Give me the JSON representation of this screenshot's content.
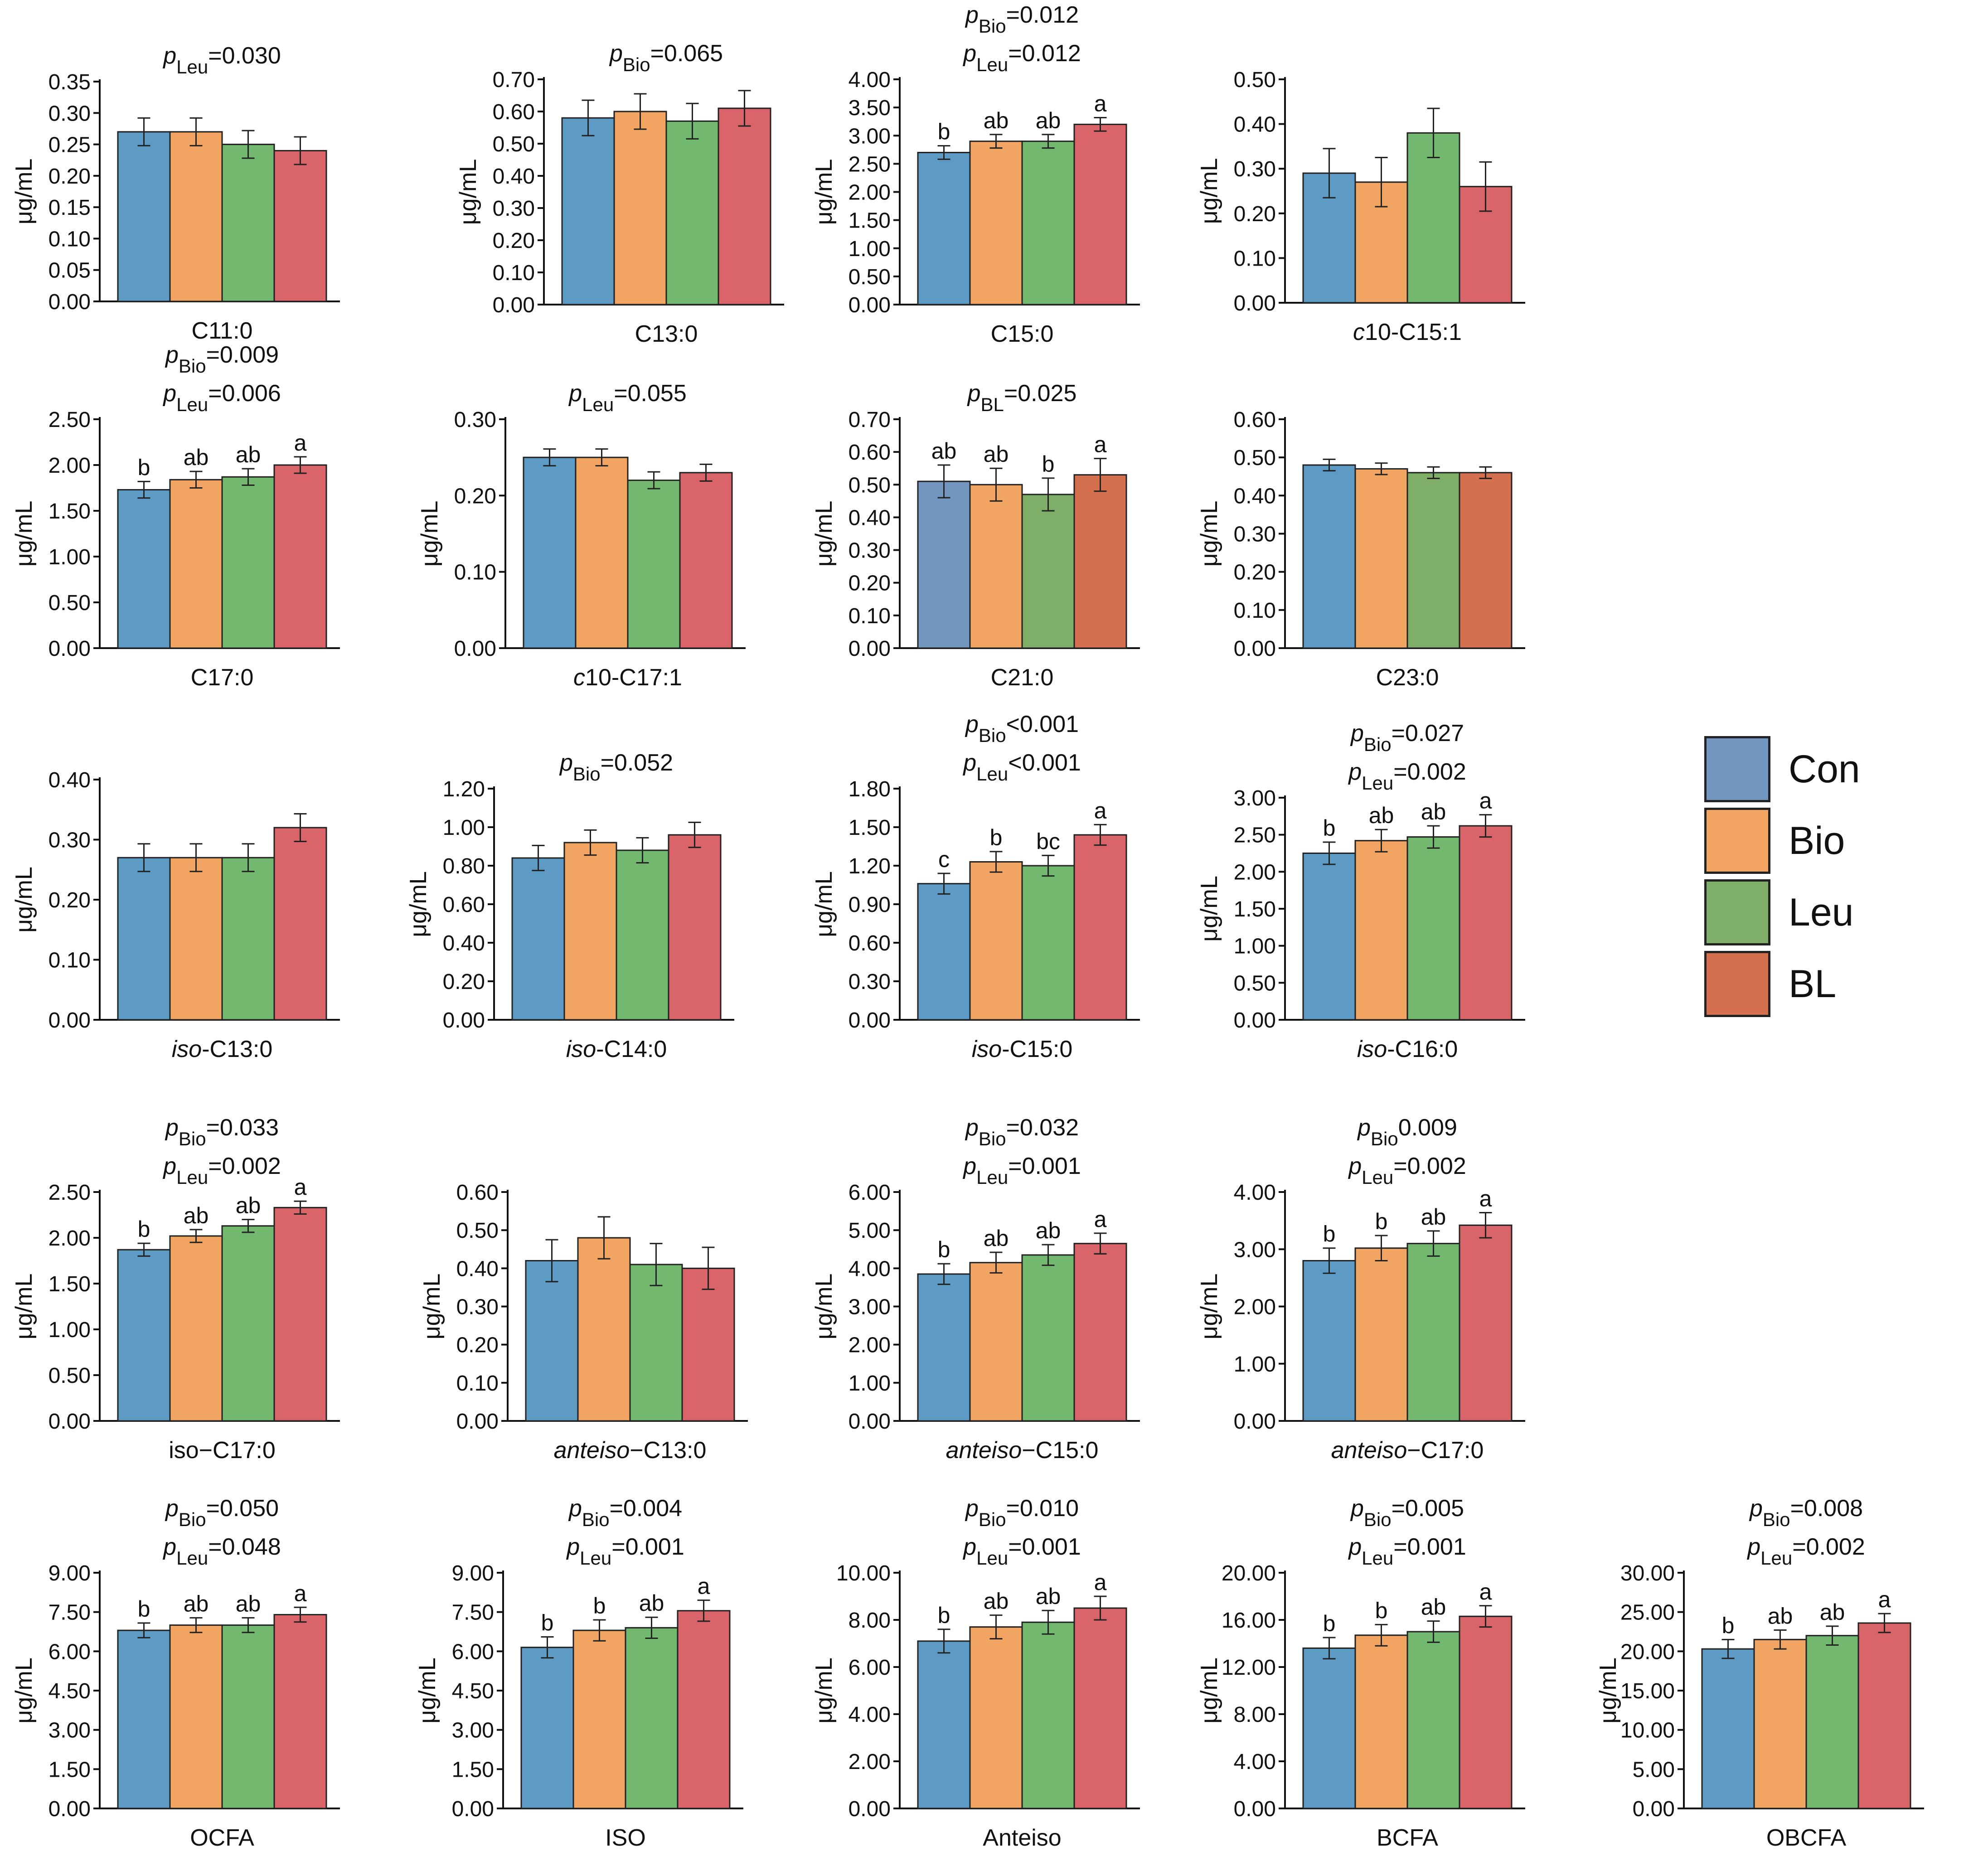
{
  "legend": {
    "items": [
      {
        "label": "Con",
        "color": "#7396c0"
      },
      {
        "label": "Bio",
        "color": "#f2a562"
      },
      {
        "label": "Leu",
        "color": "#7fae68"
      },
      {
        "label": "BL",
        "color": "#d5704f"
      }
    ]
  },
  "chart_data": [
    {
      "type": "bar",
      "xlabel": "C11:0",
      "ylabel": "μg/mL",
      "ylim": [
        0,
        0.35
      ],
      "yticks": [
        "0.00",
        "0.05",
        "0.10",
        "0.15",
        "0.20",
        "0.25",
        "0.30",
        "0.35"
      ],
      "categories": [
        "Con",
        "Bio",
        "Leu",
        "BL"
      ],
      "values": [
        0.27,
        0.27,
        0.25,
        0.24
      ],
      "errors": [
        0.022,
        0.022,
        0.022,
        0.022
      ],
      "letters": [
        "",
        "",
        "",
        ""
      ],
      "annotations": [
        {
          "p": "p",
          "sub": "Leu",
          "text": "=0.030"
        }
      ]
    },
    {
      "type": "bar",
      "xlabel": "C13:0",
      "ylabel": "μg/mL",
      "ylim": [
        0,
        0.7
      ],
      "yticks": [
        "0.00",
        "0.10",
        "0.20",
        "0.30",
        "0.40",
        "0.50",
        "0.60",
        "0.70"
      ],
      "categories": [
        "Con",
        "Bio",
        "Leu",
        "BL"
      ],
      "values": [
        0.58,
        0.6,
        0.57,
        0.61
      ],
      "errors": [
        0.055,
        0.055,
        0.055,
        0.055
      ],
      "letters": [
        "",
        "",
        "",
        ""
      ],
      "annotations": [
        {
          "p": "p",
          "sub": "Bio",
          "text": "=0.065"
        }
      ]
    },
    {
      "type": "bar",
      "xlabel": "C15:0",
      "ylabel": "μg/mL",
      "ylim": [
        0,
        4.0
      ],
      "yticks": [
        "0.00",
        "0.50",
        "1.00",
        "1.50",
        "2.00",
        "2.50",
        "3.00",
        "3.50",
        "4.00"
      ],
      "categories": [
        "Con",
        "Bio",
        "Leu",
        "BL"
      ],
      "values": [
        2.7,
        2.9,
        2.9,
        3.2
      ],
      "errors": [
        0.12,
        0.12,
        0.12,
        0.12
      ],
      "letters": [
        "b",
        "ab",
        "ab",
        "a"
      ],
      "annotations": [
        {
          "p": "p",
          "sub": "Bio",
          "text": "=0.012"
        },
        {
          "p": "p",
          "sub": "Leu",
          "text": "=0.012"
        }
      ]
    },
    {
      "type": "bar",
      "xlabel": "c10-C15:1",
      "xlabel_italic": "c",
      "xlabel_rest": "10-C15:1",
      "ylabel": "μg/mL",
      "ylim": [
        0,
        0.5
      ],
      "yticks": [
        "0.00",
        "0.10",
        "0.20",
        "0.30",
        "0.40",
        "0.50"
      ],
      "categories": [
        "Con",
        "Bio",
        "Leu",
        "BL"
      ],
      "values": [
        0.29,
        0.27,
        0.38,
        0.26
      ],
      "errors": [
        0.055,
        0.055,
        0.055,
        0.055
      ],
      "letters": [
        "",
        "",
        "",
        ""
      ],
      "annotations": []
    },
    {
      "type": "bar",
      "xlabel": "C17:0",
      "ylabel": "μg/mL",
      "ylim": [
        0,
        2.5
      ],
      "yticks": [
        "0.00",
        "0.50",
        "1.00",
        "1.50",
        "2.00",
        "2.50"
      ],
      "categories": [
        "Con",
        "Bio",
        "Leu",
        "BL"
      ],
      "values": [
        1.73,
        1.84,
        1.87,
        2.0
      ],
      "errors": [
        0.09,
        0.09,
        0.09,
        0.09
      ],
      "letters": [
        "b",
        "ab",
        "ab",
        "a"
      ],
      "annotations": [
        {
          "p": "p",
          "sub": "Bio",
          "text": "=0.009"
        },
        {
          "p": "p",
          "sub": "Leu",
          "text": "=0.006"
        }
      ]
    },
    {
      "type": "bar",
      "xlabel": "c10-C17:1",
      "xlabel_italic": "c",
      "xlabel_rest": "10-C17:1",
      "ylabel": "μg/mL",
      "ylim": [
        0,
        0.3
      ],
      "yticks": [
        "0.00",
        "0.10",
        "0.20",
        "0.30"
      ],
      "categories": [
        "Con",
        "Bio",
        "Leu",
        "BL"
      ],
      "values": [
        0.25,
        0.25,
        0.22,
        0.23
      ],
      "errors": [
        0.011,
        0.011,
        0.011,
        0.011
      ],
      "letters": [
        "",
        "",
        "",
        ""
      ],
      "annotations": [
        {
          "p": "p",
          "sub": "Leu",
          "text": "=0.055"
        }
      ]
    },
    {
      "type": "bar",
      "xlabel": "C21:0",
      "ylabel": "μg/mL",
      "ylim": [
        0,
        0.7
      ],
      "yticks": [
        "0.00",
        "0.10",
        "0.20",
        "0.30",
        "0.40",
        "0.50",
        "0.60",
        "0.70"
      ],
      "categories": [
        "Con",
        "Bio",
        "Leu",
        "BL"
      ],
      "values": [
        0.51,
        0.5,
        0.47,
        0.53
      ],
      "errors": [
        0.05,
        0.05,
        0.05,
        0.05
      ],
      "letters": [
        "ab",
        "ab",
        "b",
        "a"
      ],
      "colors": [
        "#7396c0",
        "#f2a562",
        "#7fae68",
        "#d5704f"
      ],
      "annotations": [
        {
          "p": "p",
          "sub": "BL",
          "text": "=0.025"
        }
      ]
    },
    {
      "type": "bar",
      "xlabel": "C23:0",
      "ylabel": "μg/mL",
      "ylim": [
        0,
        0.6
      ],
      "yticks": [
        "0.00",
        "0.10",
        "0.20",
        "0.30",
        "0.40",
        "0.50",
        "0.60"
      ],
      "categories": [
        "Con",
        "Bio",
        "Leu",
        "BL"
      ],
      "values": [
        0.48,
        0.47,
        0.46,
        0.46
      ],
      "errors": [
        0.015,
        0.015,
        0.015,
        0.015
      ],
      "letters": [
        "",
        "",
        "",
        ""
      ],
      "colors": [
        "#5d9bc4",
        "#f2a562",
        "#7fae68",
        "#d5704f"
      ],
      "annotations": []
    },
    {
      "type": "bar",
      "xlabel": "iso-C13:0",
      "xlabel_italic": "iso",
      "xlabel_rest": "-C13:0",
      "ylabel": "μg/mL",
      "ylim": [
        0,
        0.4
      ],
      "yticks": [
        "0.00",
        "0.10",
        "0.20",
        "0.30",
        "0.40"
      ],
      "categories": [
        "Con",
        "Bio",
        "Leu",
        "BL"
      ],
      "values": [
        0.27,
        0.27,
        0.27,
        0.32
      ],
      "errors": [
        0.023,
        0.023,
        0.023,
        0.023
      ],
      "letters": [
        "",
        "",
        "",
        ""
      ],
      "annotations": []
    },
    {
      "type": "bar",
      "xlabel": "iso-C14:0",
      "xlabel_italic": "iso",
      "xlabel_rest": "-C14:0",
      "ylabel": "μg/mL",
      "ylim": [
        0,
        1.2
      ],
      "yticks": [
        "0.00",
        "0.20",
        "0.40",
        "0.60",
        "0.80",
        "1.00",
        "1.20"
      ],
      "categories": [
        "Con",
        "Bio",
        "Leu",
        "BL"
      ],
      "values": [
        0.84,
        0.92,
        0.88,
        0.96
      ],
      "errors": [
        0.065,
        0.065,
        0.065,
        0.065
      ],
      "letters": [
        "",
        "",
        "",
        ""
      ],
      "annotations": [
        {
          "p": "p",
          "sub": "Bio",
          "text": "=0.052"
        }
      ]
    },
    {
      "type": "bar",
      "xlabel": "iso-C15:0",
      "xlabel_italic": "iso",
      "xlabel_rest": "-C15:0",
      "ylabel": "μg/mL",
      "ylim": [
        0,
        1.8
      ],
      "yticks": [
        "0.00",
        "0.30",
        "0.60",
        "0.90",
        "1.20",
        "1.50",
        "1.80"
      ],
      "categories": [
        "Con",
        "Bio",
        "Leu",
        "BL"
      ],
      "values": [
        1.06,
        1.23,
        1.2,
        1.44
      ],
      "errors": [
        0.08,
        0.08,
        0.08,
        0.08
      ],
      "letters": [
        "c",
        "b",
        "bc",
        "a"
      ],
      "annotations": [
        {
          "p": "p",
          "sub": "Bio",
          "text": "<0.001"
        },
        {
          "p": "p",
          "sub": "Leu",
          "text": "<0.001"
        }
      ]
    },
    {
      "type": "bar",
      "xlabel": "iso-C16:0",
      "xlabel_italic": "iso",
      "xlabel_rest": "-C16:0",
      "ylabel": "μg/mL",
      "ylim": [
        0,
        3.0
      ],
      "yticks": [
        "0.00",
        "0.25",
        "0.50",
        "0.75",
        "1.00",
        "1.25",
        "1.50",
        "1.75",
        "2.00",
        "2.25",
        "2.50",
        "2.75",
        "3.00"
      ],
      "yticks_shown": [
        "0.00",
        "0.50",
        "1.00",
        "1.50",
        "2.00",
        "2.50",
        "3.00"
      ],
      "categories": [
        "Con",
        "Bio",
        "Leu",
        "BL"
      ],
      "values": [
        2.25,
        2.42,
        2.47,
        2.62
      ],
      "errors": [
        0.15,
        0.15,
        0.15,
        0.15
      ],
      "letters": [
        "b",
        "ab",
        "ab",
        "a"
      ],
      "annotations": [
        {
          "p": "p",
          "sub": "Bio",
          "text": "=0.027"
        },
        {
          "p": "p",
          "sub": "Leu",
          "text": "=0.002"
        }
      ]
    },
    {
      "type": "bar",
      "xlabel": "iso−C17:0",
      "ylabel": "μg/mL",
      "ylim": [
        0,
        2.5
      ],
      "yticks": [
        "0.00",
        "0.50",
        "1.00",
        "1.50",
        "2.00",
        "2.50"
      ],
      "categories": [
        "Con",
        "Bio",
        "Leu",
        "BL"
      ],
      "values": [
        1.87,
        2.02,
        2.13,
        2.33
      ],
      "errors": [
        0.07,
        0.07,
        0.07,
        0.07
      ],
      "letters": [
        "b",
        "ab",
        "ab",
        "a"
      ],
      "annotations": [
        {
          "p": "p",
          "sub": "Bio",
          "text": "=0.033"
        },
        {
          "p": "p",
          "sub": "Leu",
          "text": "=0.002"
        }
      ]
    },
    {
      "type": "bar",
      "xlabel": "anteiso−C13:0",
      "xlabel_italic": "anteiso",
      "xlabel_rest": "−C13:0",
      "ylabel": "μg/mL",
      "ylim": [
        0,
        0.6
      ],
      "yticks": [
        "0.00",
        "0.10",
        "0.20",
        "0.30",
        "0.40",
        "0.50",
        "0.60"
      ],
      "categories": [
        "Con",
        "Bio",
        "Leu",
        "BL"
      ],
      "values": [
        0.42,
        0.48,
        0.41,
        0.4
      ],
      "errors": [
        0.055,
        0.055,
        0.055,
        0.055
      ],
      "letters": [
        "",
        "",
        "",
        ""
      ],
      "annotations": []
    },
    {
      "type": "bar",
      "xlabel": "anteiso−C15:0",
      "xlabel_italic": "anteiso",
      "xlabel_rest": "−C15:0",
      "ylabel": "μg/mL",
      "ylim": [
        0,
        6.0
      ],
      "yticks": [
        "0.00",
        "1.00",
        "2.00",
        "3.00",
        "4.00",
        "5.00",
        "6.00"
      ],
      "categories": [
        "Con",
        "Bio",
        "Leu",
        "BL"
      ],
      "values": [
        3.85,
        4.15,
        4.35,
        4.65
      ],
      "errors": [
        0.27,
        0.27,
        0.27,
        0.27
      ],
      "letters": [
        "b",
        "ab",
        "ab",
        "a"
      ],
      "annotations": [
        {
          "p": "p",
          "sub": "Bio",
          "text": "=0.032"
        },
        {
          "p": "p",
          "sub": "Leu",
          "text": "=0.001"
        }
      ]
    },
    {
      "type": "bar",
      "xlabel": "anteiso−C17:0",
      "xlabel_italic": "anteiso",
      "xlabel_rest": "−C17:0",
      "ylabel": "μg/mL",
      "ylim": [
        0,
        4.0
      ],
      "yticks": [
        "0.00",
        "1.00",
        "2.00",
        "3.00",
        "4.00"
      ],
      "categories": [
        "Con",
        "Bio",
        "Leu",
        "BL"
      ],
      "values": [
        2.8,
        3.02,
        3.1,
        3.42
      ],
      "errors": [
        0.22,
        0.22,
        0.22,
        0.22
      ],
      "letters": [
        "b",
        "b",
        "ab",
        "a"
      ],
      "annotations": [
        {
          "p": "p",
          "sub": "Bio",
          "text": "0.009"
        },
        {
          "p": "p",
          "sub": "Leu",
          "text": "=0.002"
        }
      ]
    },
    {
      "type": "bar",
      "xlabel": "OCFA",
      "ylabel": "μg/mL",
      "ylim": [
        0,
        9.0
      ],
      "yticks": [
        "0.00",
        "1.50",
        "3.00",
        "4.50",
        "6.00",
        "7.50",
        "9.00"
      ],
      "categories": [
        "Con",
        "Bio",
        "Leu",
        "BL"
      ],
      "values": [
        6.8,
        7.0,
        7.0,
        7.4
      ],
      "errors": [
        0.28,
        0.28,
        0.28,
        0.28
      ],
      "letters": [
        "b",
        "ab",
        "ab",
        "a"
      ],
      "annotations": [
        {
          "p": "p",
          "sub": "Bio",
          "text": "=0.050"
        },
        {
          "p": "p",
          "sub": "Leu",
          "text": "=0.048"
        }
      ]
    },
    {
      "type": "bar",
      "xlabel": "ISO",
      "ylabel": "μg/mL",
      "ylim": [
        0,
        9.0
      ],
      "yticks": [
        "0.00",
        "1.50",
        "3.00",
        "4.50",
        "6.00",
        "7.50",
        "9.00"
      ],
      "categories": [
        "Con",
        "Bio",
        "Leu",
        "BL"
      ],
      "values": [
        6.15,
        6.8,
        6.9,
        7.55
      ],
      "errors": [
        0.4,
        0.4,
        0.4,
        0.4
      ],
      "letters": [
        "b",
        "b",
        "ab",
        "a"
      ],
      "annotations": [
        {
          "p": "p",
          "sub": "Bio",
          "text": "=0.004"
        },
        {
          "p": "p",
          "sub": "Leu",
          "text": "=0.001"
        }
      ]
    },
    {
      "type": "bar",
      "xlabel": "Anteiso",
      "ylabel": "μg/mL",
      "ylim": [
        0,
        10.0
      ],
      "yticks": [
        "0.00",
        "2.00",
        "4.00",
        "6.00",
        "8.00",
        "10.00"
      ],
      "categories": [
        "Con",
        "Bio",
        "Leu",
        "BL"
      ],
      "values": [
        7.1,
        7.7,
        7.9,
        8.5
      ],
      "errors": [
        0.5,
        0.5,
        0.5,
        0.5
      ],
      "letters": [
        "b",
        "ab",
        "ab",
        "a"
      ],
      "annotations": [
        {
          "p": "p",
          "sub": "Bio",
          "text": "=0.010"
        },
        {
          "p": "p",
          "sub": "Leu",
          "text": "=0.001"
        }
      ]
    },
    {
      "type": "bar",
      "xlabel": "BCFA",
      "ylabel": "μg/mL",
      "ylim": [
        0,
        20.0
      ],
      "yticks": [
        "0.00",
        "4.00",
        "8.00",
        "12.00",
        "16.00",
        "20.00"
      ],
      "categories": [
        "Con",
        "Bio",
        "Leu",
        "BL"
      ],
      "values": [
        13.6,
        14.7,
        15.0,
        16.3
      ],
      "errors": [
        0.9,
        0.9,
        0.9,
        0.9
      ],
      "letters": [
        "b",
        "b",
        "ab",
        "a"
      ],
      "annotations": [
        {
          "p": "p",
          "sub": "Bio",
          "text": "=0.005"
        },
        {
          "p": "p",
          "sub": "Leu",
          "text": "=0.001"
        }
      ]
    },
    {
      "type": "bar",
      "xlabel": "OBCFA",
      "ylabel": "μg/mL",
      "ylim": [
        0,
        30.0
      ],
      "yticks": [
        "0.00",
        "5.00",
        "10.00",
        "15.00",
        "20.00",
        "25.00",
        "30.00"
      ],
      "categories": [
        "Con",
        "Bio",
        "Leu",
        "BL"
      ],
      "values": [
        20.3,
        21.5,
        22.0,
        23.6
      ],
      "errors": [
        1.2,
        1.2,
        1.2,
        1.2
      ],
      "letters": [
        "b",
        "ab",
        "ab",
        "a"
      ],
      "annotations": [
        {
          "p": "p",
          "sub": "Bio",
          "text": "=0.008"
        },
        {
          "p": "p",
          "sub": "Leu",
          "text": "=0.002"
        }
      ]
    }
  ]
}
